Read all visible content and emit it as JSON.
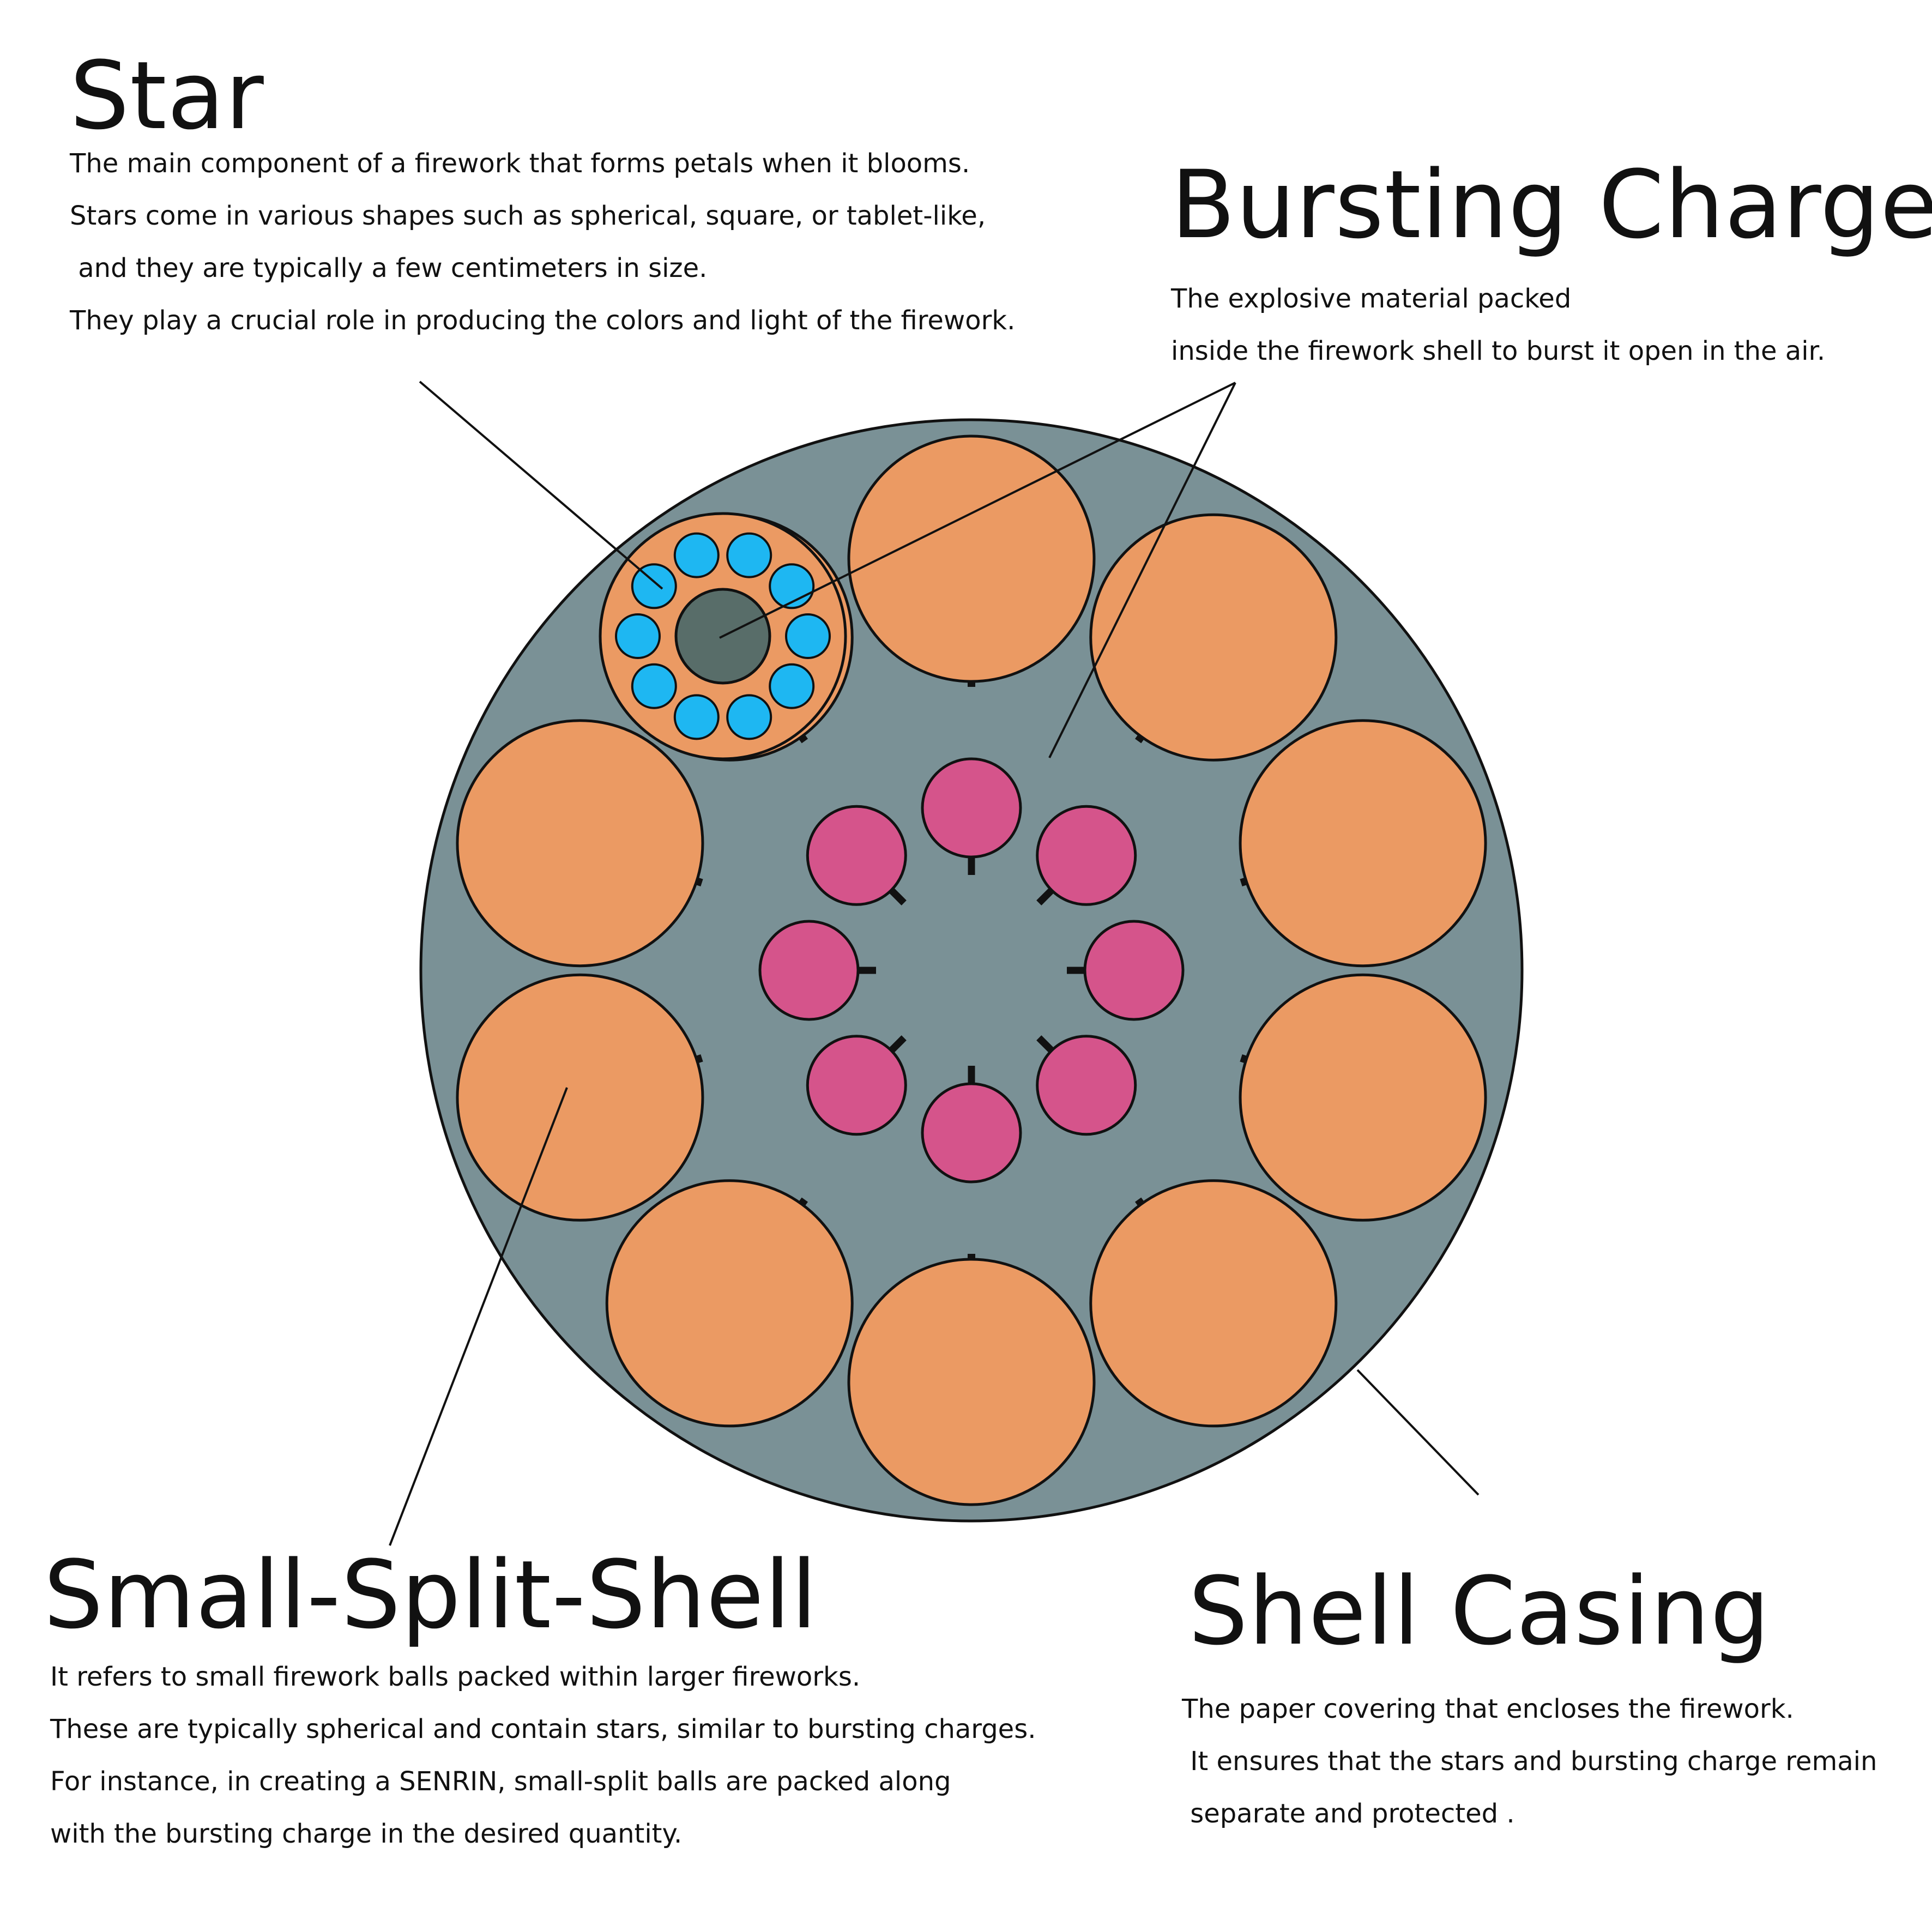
{
  "labels": {
    "star": {
      "title": "Star",
      "lines": [
        "The main component of a firework that forms petals when it blooms.",
        "Stars come in various shapes such as spherical, square, or tablet-like,",
        " and they are typically a few centimeters in size.",
        "They play a crucial role in producing the colors and light of the firework."
      ]
    },
    "bursting_charge": {
      "title": "Bursting Charge",
      "lines": [
        "The explosive material packed",
        "inside the firework shell to burst it open in the air."
      ]
    },
    "small_split_shell": {
      "title": "Small-Split-Shell",
      "lines": [
        "It refers to small firework balls packed within larger fireworks.",
        "These are typically spherical and contain stars, similar to bursting charges.",
        "For instance, in creating a SENRIN, small-split balls are packed along",
        "with the bursting charge in the desired quantity."
      ]
    },
    "shell_casing": {
      "title": "Shell Casing",
      "lines": [
        "The paper covering that encloses the firework.",
        " It ensures that the stars and bursting charge remain",
        " separate and protected ."
      ]
    }
  },
  "colors": {
    "shell_casing": "#7a9196",
    "small_split_shell": "#eb9a63",
    "bursting_charge_ball": "#d5548b",
    "star": "#1eb7f2",
    "core": "#586d69",
    "outline": "#111111"
  },
  "counts": {
    "small_split_shells": 10,
    "bursting_charge_balls": 8,
    "stars_in_shell": 10
  }
}
